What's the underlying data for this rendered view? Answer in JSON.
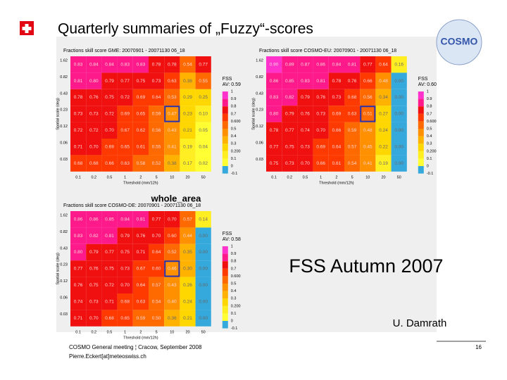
{
  "header": {
    "title": "Quarterly summaries of „Fuzzy“-scores",
    "logo": "COSMO"
  },
  "panels": [
    {
      "title": "Fractions skill score GME: 20070901 - 20071130 06_18",
      "y_label": "Spatial scale (deg)",
      "x_label": "Threshold (mm/12h)",
      "row_labels": [
        "1.62",
        "0.82",
        "0.43",
        "0.23",
        "0.12",
        "0.06",
        "0.03"
      ],
      "col_labels": [
        "0.1",
        "0.2",
        "0.5",
        "1",
        "2",
        "5",
        "10",
        "20",
        "50"
      ],
      "values": [
        [
          "0.83",
          "0.84",
          "0.84",
          "0.83",
          "0.83",
          "0.78",
          "0.78",
          "0.54",
          "0.77"
        ],
        [
          "0.81",
          "0.80",
          "0.79",
          "0.77",
          "0.75",
          "0.73",
          "0.63",
          "0.38",
          "0.55"
        ],
        [
          "0.78",
          "0.76",
          "0.75",
          "0.72",
          "0.69",
          "0.64",
          "0.53",
          "0.29",
          "0.25"
        ],
        [
          "0.73",
          "0.73",
          "0.72",
          "0.69",
          "0.65",
          "0.59",
          "0.47",
          "0.23",
          "0.10"
        ],
        [
          "0.72",
          "0.72",
          "0.70",
          "0.67",
          "0.62",
          "0.56",
          "0.43",
          "0.21",
          "0.05"
        ],
        [
          "0.71",
          "0.70",
          "0.69",
          "0.65",
          "0.61",
          "0.55",
          "0.41",
          "0.19",
          "0.04"
        ],
        [
          "0.68",
          "0.68",
          "0.66",
          "0.63",
          "0.58",
          "0.52",
          "0.38",
          "0.17",
          "0.02"
        ]
      ],
      "legend_title": "FSS",
      "average": "AV: 0.59"
    },
    {
      "title": "Fractions skill score COSMO-EU: 20070901 - 20071130 06_18",
      "y_label": "Spatial scale (deg)",
      "x_label": "Threshold (mm/12h)",
      "row_labels": [
        "1.62",
        "0.82",
        "0.43",
        "0.23",
        "0.12",
        "0.06",
        "0.03"
      ],
      "col_labels": [
        "0.1",
        "0.2",
        "0.5",
        "1",
        "2",
        "5",
        "10",
        "20",
        "50"
      ],
      "values": [
        [
          "0.90",
          "0.89",
          "0.87",
          "0.86",
          "0.84",
          "0.81",
          "0.77",
          "0.64",
          "0.16"
        ],
        [
          "0.86",
          "0.85",
          "0.83",
          "0.81",
          "0.78",
          "0.76",
          "0.66",
          "0.48",
          "0.00"
        ],
        [
          "0.83",
          "0.82",
          "0.79",
          "0.76",
          "0.73",
          "0.68",
          "0.56",
          "0.34",
          "0.00"
        ],
        [
          "0.80",
          "0.79",
          "0.76",
          "0.73",
          "0.69",
          "0.63",
          "0.51",
          "0.27",
          "0.00"
        ],
        [
          "0.78",
          "0.77",
          "0.74",
          "0.70",
          "0.66",
          "0.59",
          "0.48",
          "0.24",
          "0.00"
        ],
        [
          "0.77",
          "0.75",
          "0.73",
          "0.69",
          "0.64",
          "0.57",
          "0.45",
          "0.22",
          "0.00"
        ],
        [
          "0.75",
          "0.73",
          "0.70",
          "0.66",
          "0.61",
          "0.54",
          "0.41",
          "0.19",
          "0.00"
        ]
      ],
      "legend_title": "FSS",
      "average": "AV: 0.60"
    },
    {
      "title": "Fractions skill score COSMO-DE: 20070901 - 20071130 06_18",
      "y_label": "Spatial scale (deg)",
      "x_label": "Threshold (mm/12h)",
      "row_labels": [
        "1.62",
        "0.82",
        "0.43",
        "0.23",
        "0.12",
        "0.06",
        "0.03"
      ],
      "col_labels": [
        "0.1",
        "0.2",
        "0.5",
        "1",
        "2",
        "5",
        "10",
        "20",
        "50"
      ],
      "values": [
        [
          "0.86",
          "0.86",
          "0.85",
          "0.84",
          "0.81",
          "0.77",
          "0.70",
          "0.57",
          "0.14"
        ],
        [
          "0.83",
          "0.82",
          "0.81",
          "0.79",
          "0.76",
          "0.70",
          "0.60",
          "0.44",
          "0.00"
        ],
        [
          "0.80",
          "0.79",
          "0.77",
          "0.75",
          "0.71",
          "0.64",
          "0.52",
          "0.35",
          "0.00"
        ],
        [
          "0.77",
          "0.76",
          "0.75",
          "0.73",
          "0.67",
          "0.60",
          "0.46",
          "0.30",
          "0.00"
        ],
        [
          "0.76",
          "0.75",
          "0.72",
          "0.70",
          "0.64",
          "0.57",
          "0.43",
          "0.26",
          "0.00"
        ],
        [
          "0.74",
          "0.73",
          "0.71",
          "0.68",
          "0.63",
          "0.54",
          "0.40",
          "0.24",
          "0.00"
        ],
        [
          "0.71",
          "0.70",
          "0.68",
          "0.65",
          "0.59",
          "0.50",
          "0.36",
          "0.21",
          "0.00"
        ]
      ],
      "legend_title": "FSS",
      "average": "AV: 0.58"
    }
  ],
  "legend_ticks": [
    "1",
    "0.9",
    "0.8",
    "0.7",
    "0.600",
    "0.5",
    "0.4",
    "0.3",
    "0.200",
    "0.1",
    "0",
    "-0.1"
  ],
  "area_label": "whole_area",
  "caption": "FSS Autumn 2007",
  "author": "U. Damrath",
  "footer": {
    "line1": "COSMO General meeting ¦ Cracow, September 2008",
    "line2": "Pierre.Eckert[at]meteoswiss.ch",
    "page": "16"
  }
}
